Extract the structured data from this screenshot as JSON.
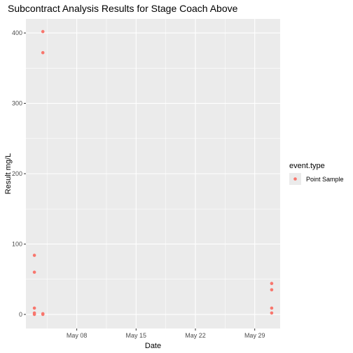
{
  "chart_data": {
    "type": "scatter",
    "title": "Subcontract Analysis Results for Stage Coach Above",
    "xlabel": "Date",
    "ylabel": "Result mg/L",
    "x_ticks": [
      "May 08",
      "May 15",
      "May 22",
      "May 29"
    ],
    "y_ticks": [
      0,
      100,
      200,
      300,
      400
    ],
    "xlim": [
      "2021-05-02",
      "2021-06-01"
    ],
    "ylim": [
      -20,
      420
    ],
    "grid": true,
    "legend": {
      "title": "event.type",
      "position": "right"
    },
    "series": [
      {
        "name": "Point Sample",
        "color": "#F8766D",
        "points": [
          {
            "x": "2021-05-03",
            "y": 84
          },
          {
            "x": "2021-05-03",
            "y": 60
          },
          {
            "x": "2021-05-03",
            "y": 9
          },
          {
            "x": "2021-05-03",
            "y": 2
          },
          {
            "x": "2021-05-03",
            "y": 0
          },
          {
            "x": "2021-05-04",
            "y": 402
          },
          {
            "x": "2021-05-04",
            "y": 372
          },
          {
            "x": "2021-05-04",
            "y": 1
          },
          {
            "x": "2021-05-04",
            "y": 0
          },
          {
            "x": "2021-05-31",
            "y": 44
          },
          {
            "x": "2021-05-31",
            "y": 35
          },
          {
            "x": "2021-05-31",
            "y": 9
          },
          {
            "x": "2021-05-31",
            "y": 2
          }
        ]
      }
    ]
  }
}
